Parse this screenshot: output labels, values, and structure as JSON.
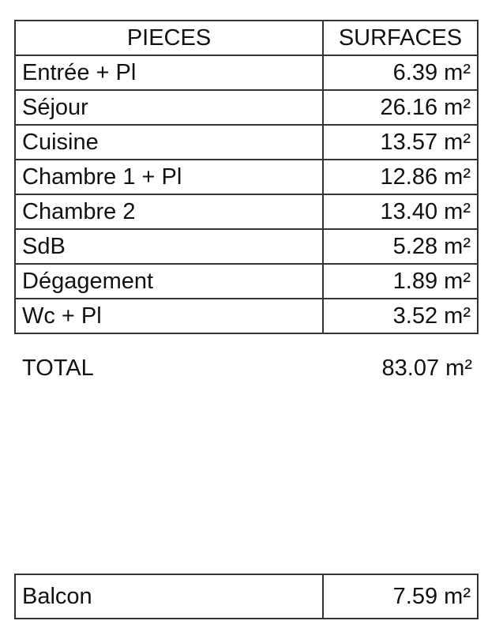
{
  "table": {
    "headers": [
      "PIECES",
      "SURFACES"
    ],
    "rows": [
      {
        "piece": "Entrée + Pl",
        "surface": "6.39 m²"
      },
      {
        "piece": "Séjour",
        "surface": "26.16 m²"
      },
      {
        "piece": "Cuisine",
        "surface": "13.57 m²"
      },
      {
        "piece": "Chambre 1 + Pl",
        "surface": "12.86 m²"
      },
      {
        "piece": "Chambre 2",
        "surface": "13.40 m²"
      },
      {
        "piece": "SdB",
        "surface": "5.28 m²"
      },
      {
        "piece": "Dégagement",
        "surface": "1.89 m²"
      },
      {
        "piece": "Wc + Pl",
        "surface": "3.52 m²"
      }
    ],
    "total_label": "TOTAL",
    "total_value": "83.07 m²"
  },
  "balcon": {
    "piece": "Balcon",
    "surface": "7.59 m²"
  }
}
